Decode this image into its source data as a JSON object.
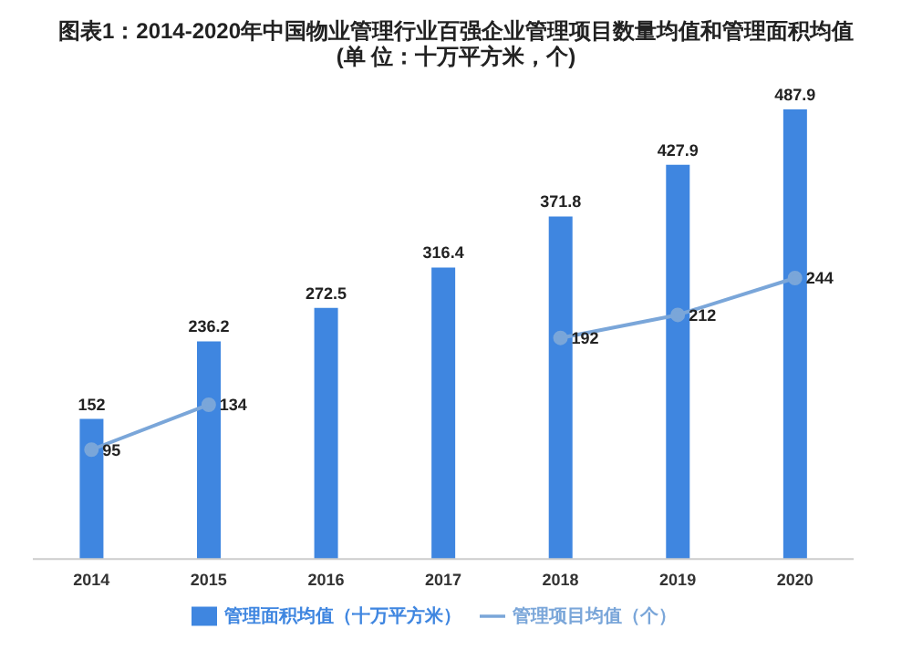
{
  "chart_data": {
    "type": "bar",
    "title": "图表1：2014-2020年中国物业管理行业百强企业管理项目数量均值和管理面积均值(单 位：十万平方米，个)",
    "categories": [
      "2014",
      "2015",
      "2016",
      "2017",
      "2018",
      "2019",
      "2020"
    ],
    "series": [
      {
        "name": "管理面积均值（十万平方米）",
        "color": "#3f86e0",
        "values": [
          152,
          236.2,
          272.5,
          316.4,
          371.8,
          427.9,
          487.9
        ]
      },
      {
        "name": "管理项目均值（个）",
        "type": "line",
        "axis": "y2",
        "color": "#7aa6d9",
        "marker": "circle",
        "values": [
          95,
          134,
          null,
          null,
          192,
          212,
          244
        ]
      }
    ],
    "data_labels": true,
    "legend": "bottom",
    "tick_labels": "x"
  }
}
